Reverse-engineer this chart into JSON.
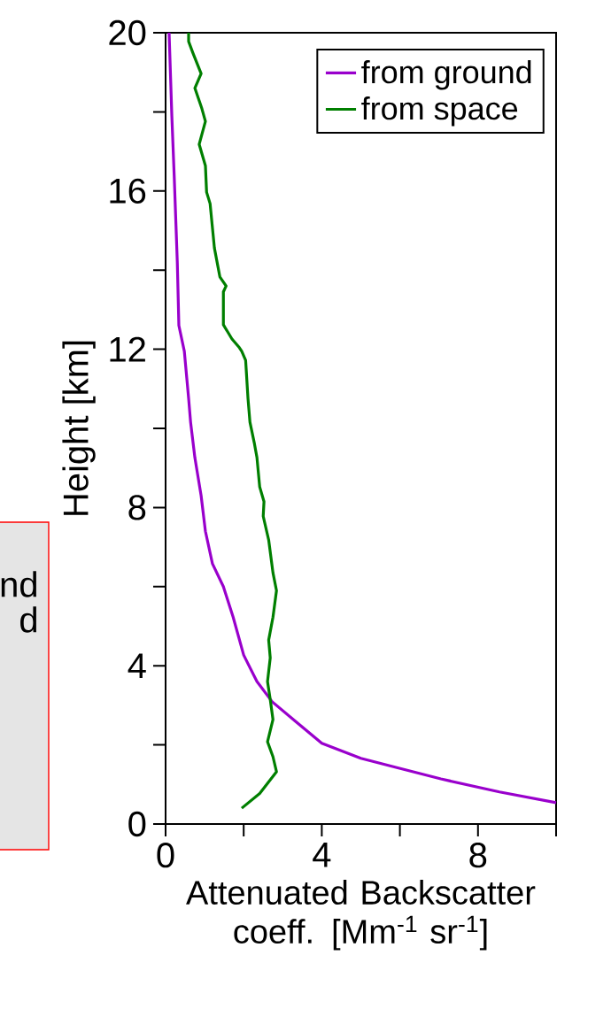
{
  "chart_data": {
    "type": "line",
    "xlabel": "Attenuated Backscatter coeff. [Mm$^{-1}$ sr$^{-1}$]",
    "ylabel": "Height [km]",
    "series": [
      {
        "name": "from ground",
        "color": "#9900cc",
        "x": [
          10.0,
          8.55,
          7.05,
          5.9,
          5.0,
          4.0,
          3.32,
          2.73,
          2.34,
          2.0,
          1.73,
          1.48,
          1.2,
          1.02,
          0.91,
          0.75,
          0.64,
          0.59,
          0.48,
          0.34,
          0.3,
          0.22,
          0.16,
          0.09
        ],
        "values": [
          0.54,
          0.81,
          1.14,
          1.43,
          1.66,
          2.04,
          2.6,
          3.09,
          3.6,
          4.27,
          5.23,
          6.0,
          6.58,
          7.4,
          8.3,
          9.26,
          10.16,
          10.76,
          11.95,
          12.6,
          14.2,
          16.4,
          17.9,
          20
        ]
      },
      {
        "name": "from space",
        "color": "#007f00",
        "x": [
          1.95,
          2.41,
          2.84,
          2.75,
          2.61,
          2.75,
          2.68,
          2.61,
          2.68,
          2.64,
          2.75,
          2.84,
          2.75,
          2.64,
          2.5,
          2.52,
          2.41,
          2.34,
          2.27,
          2.16,
          2.11,
          2.05,
          1.95,
          1.89,
          1.7,
          1.48,
          1.48,
          1.55,
          1.39,
          1.25,
          1.14,
          1.05,
          1.02,
          0.86,
          1.02,
          0.93,
          0.75,
          0.91,
          0.7,
          0.59,
          0.59
        ],
        "values": [
          0.4,
          0.77,
          1.32,
          1.7,
          2.08,
          2.64,
          3.15,
          3.6,
          4.2,
          4.65,
          5.23,
          5.9,
          6.35,
          7.18,
          7.78,
          8.15,
          8.52,
          9.26,
          9.64,
          10.16,
          10.76,
          11.72,
          11.95,
          12.04,
          12.26,
          12.62,
          13.45,
          13.6,
          13.83,
          14.56,
          15.68,
          15.97,
          16.64,
          17.18,
          17.76,
          18.08,
          18.6,
          18.97,
          19.49,
          19.78,
          20
        ]
      }
    ],
    "xlim": [
      0,
      10
    ],
    "ylim": [
      0,
      20
    ],
    "xticks": [
      0,
      {
        "value": 2,
        "label": null
      },
      4,
      {
        "value": 6,
        "label": null
      },
      8,
      {
        "value": 10,
        "label": null
      }
    ],
    "yticks": [
      0,
      {
        "value": 2,
        "label": null
      },
      4,
      {
        "value": 6,
        "label": null
      },
      8,
      {
        "value": 10,
        "label": null
      },
      12,
      {
        "value": 14,
        "label": null
      },
      16,
      {
        "value": 18,
        "label": null
      },
      20
    ],
    "legend": "top right",
    "line_style": "solid",
    "marker": "none",
    "annotations": [
      "nd",
      "d"
    ]
  }
}
